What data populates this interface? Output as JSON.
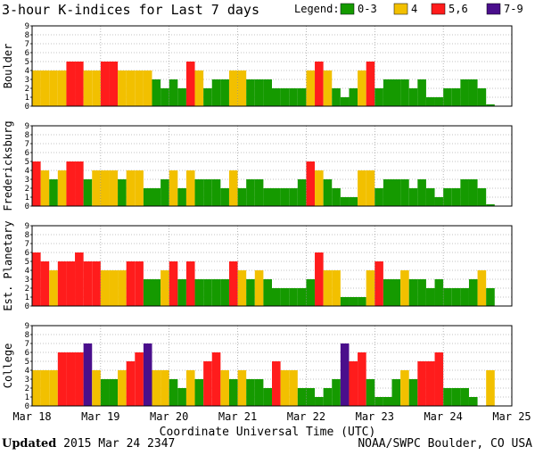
{
  "title": "3-hour K-indices for Last 7 days",
  "legend": {
    "label": "Legend:",
    "items": [
      {
        "label": "0-3",
        "color": "#159a00"
      },
      {
        "label": "4",
        "color": "#f2c000"
      },
      {
        "label": "5,6",
        "color": "#ff1c1c"
      },
      {
        "label": "7-9",
        "color": "#4a0f8c"
      }
    ]
  },
  "chart_data": {
    "type": "bar",
    "title": "3-hour K-indices for Last 7 days",
    "xlabel": "Coordinate Universal Time (UTC)",
    "x_tick_labels": [
      "Mar 18",
      "Mar 19",
      "Mar 20",
      "Mar 21",
      "Mar 22",
      "Mar 23",
      "Mar 24",
      "Mar 25"
    ],
    "ylim": [
      0,
      9
    ],
    "y_ticks": [
      "0",
      "1",
      "2",
      "3",
      "4",
      "5",
      "6",
      "7",
      "8",
      "9"
    ],
    "bins_per_day": 8,
    "panels": [
      {
        "name": "Boulder",
        "values": [
          4,
          4,
          4,
          4,
          5,
          5,
          4,
          4,
          5,
          5,
          4,
          4,
          4,
          4,
          3,
          2,
          3,
          2,
          5,
          4,
          2,
          3,
          3,
          4,
          4,
          3,
          3,
          3,
          2,
          2,
          2,
          2,
          4,
          5,
          4,
          2,
          1,
          2,
          4,
          5,
          2,
          3,
          3,
          3,
          2,
          3,
          1,
          1,
          2,
          2,
          3,
          3,
          2,
          0
        ]
      },
      {
        "name": "Fredericksburg",
        "values": [
          5,
          4,
          3,
          4,
          5,
          5,
          3,
          4,
          4,
          4,
          3,
          4,
          4,
          2,
          2,
          3,
          4,
          2,
          4,
          3,
          3,
          3,
          2,
          4,
          2,
          3,
          3,
          2,
          2,
          2,
          2,
          3,
          5,
          4,
          3,
          2,
          1,
          1,
          4,
          4,
          2,
          3,
          3,
          3,
          2,
          3,
          2,
          1,
          2,
          2,
          3,
          3,
          2,
          0
        ]
      },
      {
        "name": "Est. Planetary",
        "values": [
          6,
          5,
          4,
          5,
          5,
          6,
          5,
          5,
          4,
          4,
          4,
          5,
          5,
          3,
          3,
          4,
          5,
          3,
          5,
          3,
          3,
          3,
          3,
          5,
          4,
          3,
          4,
          3,
          2,
          2,
          2,
          2,
          3,
          6,
          4,
          4,
          1,
          1,
          1,
          4,
          5,
          3,
          3,
          4,
          3,
          3,
          2,
          3,
          2,
          2,
          2,
          3,
          4,
          2
        ]
      },
      {
        "name": "College",
        "values": [
          4,
          4,
          4,
          6,
          6,
          6,
          7,
          4,
          3,
          3,
          4,
          5,
          6,
          7,
          4,
          4,
          3,
          2,
          4,
          3,
          5,
          6,
          4,
          3,
          4,
          3,
          3,
          2,
          5,
          4,
          4,
          2,
          2,
          1,
          2,
          3,
          7,
          5,
          6,
          3,
          1,
          1,
          3,
          4,
          3,
          5,
          5,
          6,
          2,
          2,
          2,
          1,
          0,
          4
        ]
      }
    ]
  },
  "footer": {
    "updated_label": "Updated",
    "updated_value": "2015 Mar 24 2347",
    "source": "NOAA/SWPC Boulder, CO USA"
  }
}
